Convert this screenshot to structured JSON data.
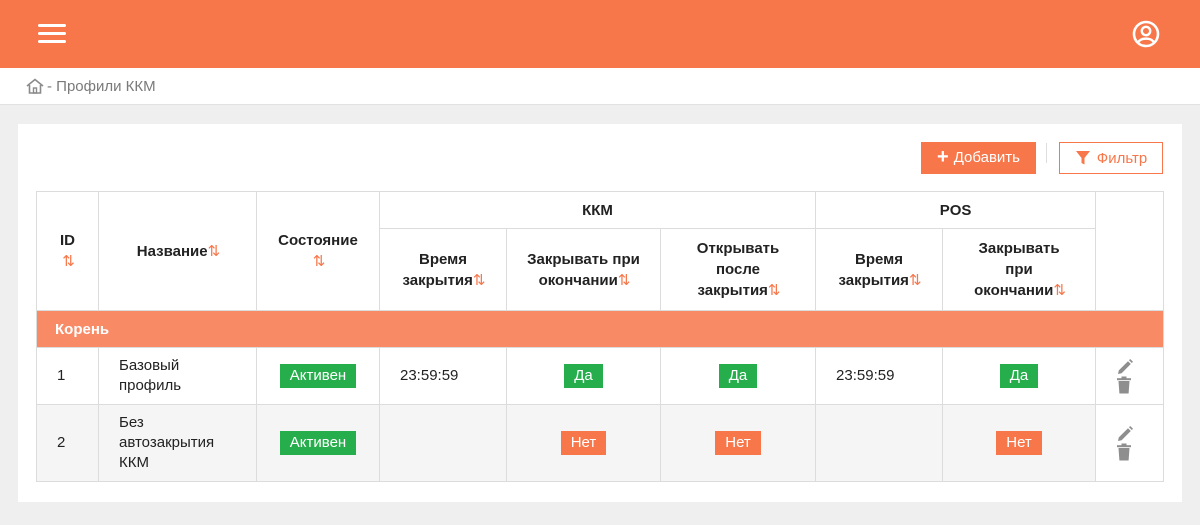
{
  "header": {
    "menu_icon": "hamburger-menu-icon",
    "account_icon": "user-circle-icon",
    "accent_color": "#f7774a"
  },
  "breadcrumb": {
    "home_icon": "home-icon",
    "text": "- Профили ККМ"
  },
  "toolbar": {
    "add_label": "Добавить",
    "add_icon": "plus-icon",
    "filter_label": "Фильтр",
    "filter_icon": "filter-funnel-icon"
  },
  "table": {
    "sort_glyph": "⇅",
    "headers": {
      "id": "ID",
      "name": "Название",
      "state": "Состояние",
      "kkm_group": "ККМ",
      "pos_group": "POS",
      "kkm_close_time": "Время закрытия",
      "kkm_close_on_end": "Закрывать при окончании",
      "kkm_open_after_close": "Открывать после закрытия",
      "pos_close_time": "Время закрытия",
      "pos_close_on_end": "Закрывать при окончании"
    },
    "group_label": "Корень",
    "rows": [
      {
        "id": "1",
        "name": "Базовый профиль",
        "state": "Активен",
        "kkm_close_time": "23:59:59",
        "kkm_close_on_end": "Да",
        "kkm_open_after_close": "Да",
        "pos_close_time": "23:59:59",
        "pos_close_on_end": "Да"
      },
      {
        "id": "2",
        "name": "Без автозакрытия ККМ",
        "state": "Активен",
        "kkm_close_time": "",
        "kkm_close_on_end": "Нет",
        "kkm_open_after_close": "Нет",
        "pos_close_time": "",
        "pos_close_on_end": "Нет"
      }
    ],
    "colors": {
      "yes": "#26ad4c",
      "no": "#f7774a",
      "group_row": "#f98a66"
    }
  }
}
